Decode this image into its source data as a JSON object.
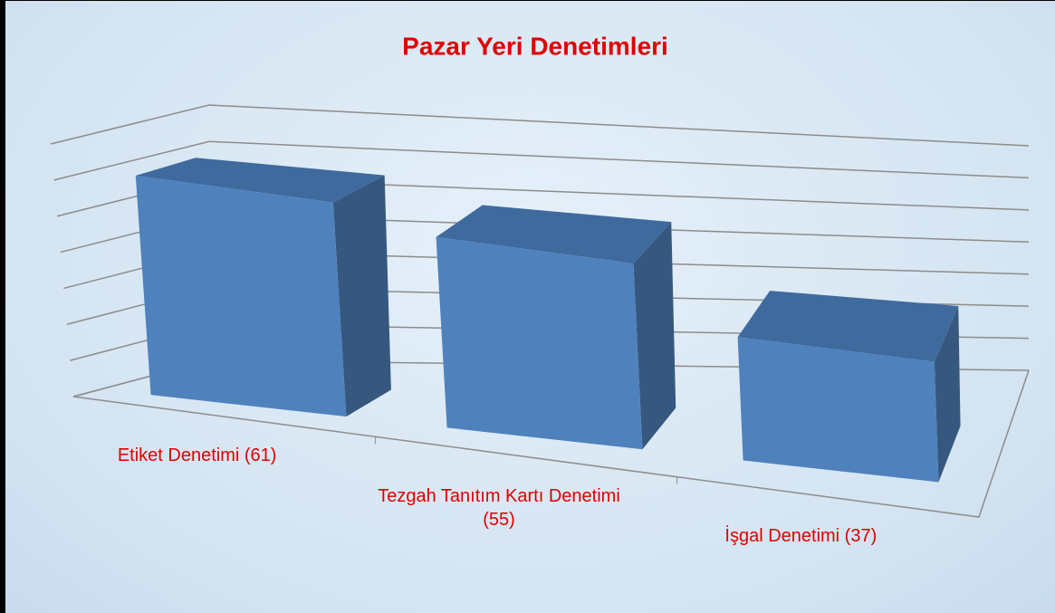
{
  "chart_data": {
    "type": "bar3d",
    "title": "Pazar Yeri Denetimleri",
    "categories": [
      "Etiket Denetimi (61)",
      "Tezgah Tanıtım Kartı Denetimi (55)",
      "İşgal Denetimi (37)"
    ],
    "values": [
      61,
      55,
      37
    ],
    "color": "#4f81bd",
    "ylim": [
      0,
      70
    ],
    "yticks": [
      0,
      10,
      20,
      30,
      40,
      50,
      60,
      70
    ],
    "grid": true
  }
}
